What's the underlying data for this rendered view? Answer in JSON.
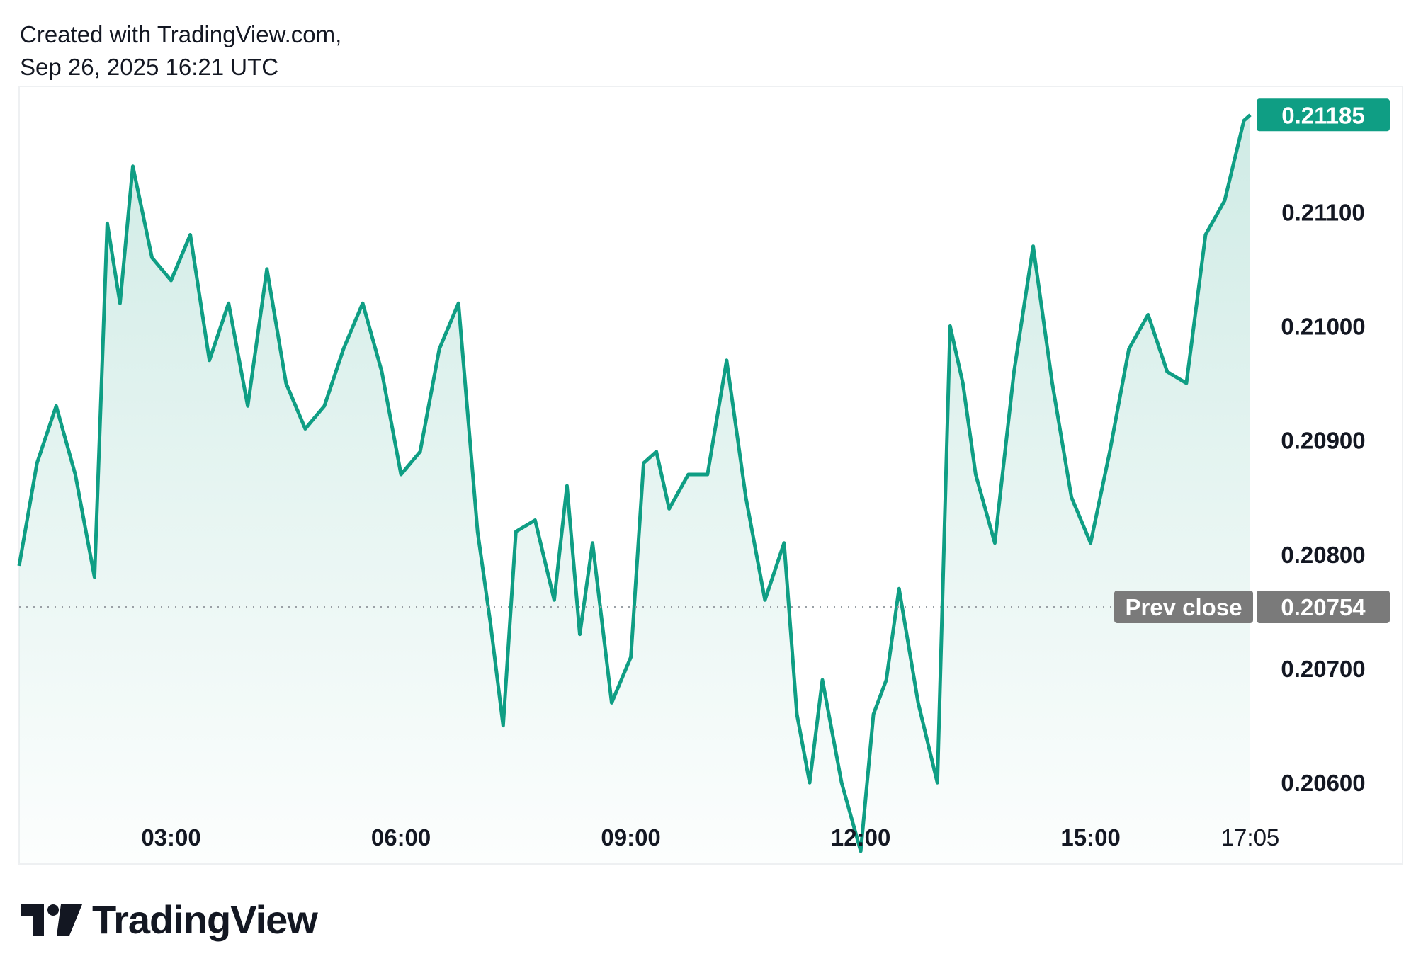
{
  "header": {
    "created_with": "Created with TradingView.com,",
    "timestamp": "Sep 26, 2025 16:21 UTC"
  },
  "brand": {
    "name": "TradingView"
  },
  "colors": {
    "line": "#0f9e84",
    "fill_top": "#cdeae4",
    "badge_gray": "#7a7a7a",
    "text": "#131722"
  },
  "chart_data": {
    "type": "area",
    "ylim": [
      0.2053,
      0.2121
    ],
    "grid": false,
    "y_ticks": [
      "0.21100",
      "0.21000",
      "0.20900",
      "0.20800",
      "0.20700",
      "0.20600"
    ],
    "x_ticks": [
      "03:00",
      "06:00",
      "09:00",
      "12:00",
      "15:00",
      "17:05"
    ],
    "last_price_label": "0.21185",
    "prev_close": {
      "label": "Prev close",
      "value_label": "0.20754",
      "value": 0.20754
    },
    "series": [
      {
        "x": [
          "01:01",
          "01:15",
          "01:30",
          "01:45",
          "02:00",
          "02:10",
          "02:20",
          "02:30",
          "02:45",
          "03:00",
          "03:15",
          "03:30",
          "03:45",
          "04:00",
          "04:15",
          "04:30",
          "04:45",
          "05:00",
          "05:15",
          "05:30",
          "05:45",
          "06:00",
          "06:15",
          "06:30",
          "06:45",
          "07:00",
          "07:10",
          "07:20",
          "07:30",
          "07:45",
          "08:00",
          "08:10",
          "08:20",
          "08:30",
          "08:45",
          "09:00",
          "09:10",
          "09:20",
          "09:30",
          "09:45",
          "10:00",
          "10:15",
          "10:30",
          "10:45",
          "11:00",
          "11:10",
          "11:20",
          "11:30",
          "11:45",
          "12:00",
          "12:10",
          "12:20",
          "12:30",
          "12:45",
          "13:00",
          "13:10",
          "13:20",
          "13:30",
          "13:45",
          "14:00",
          "14:15",
          "14:30",
          "14:45",
          "15:00",
          "15:15",
          "15:30",
          "15:45",
          "16:00",
          "16:15",
          "16:30",
          "16:45",
          "17:00",
          "17:05"
        ],
        "values": [
          0.2079,
          0.2088,
          0.2093,
          0.2087,
          0.2078,
          0.2109,
          0.2102,
          0.2114,
          0.2106,
          0.2104,
          0.2108,
          0.2097,
          0.2102,
          0.2093,
          0.2105,
          0.2095,
          0.2091,
          0.2093,
          0.2098,
          0.2102,
          0.2096,
          0.2087,
          0.2089,
          0.2098,
          0.2102,
          0.2082,
          0.2074,
          0.2065,
          0.2082,
          0.2083,
          0.2076,
          0.2086,
          0.2073,
          0.2081,
          0.2067,
          0.2071,
          0.2088,
          0.2089,
          0.2084,
          0.2087,
          0.2087,
          0.2097,
          0.2085,
          0.2076,
          0.2081,
          0.2066,
          0.206,
          0.2069,
          0.206,
          0.2054,
          0.2066,
          0.2069,
          0.2077,
          0.2067,
          0.206,
          0.21,
          0.2095,
          0.2087,
          0.2081,
          0.2096,
          0.2107,
          0.2095,
          0.2085,
          0.2081,
          0.2089,
          0.2098,
          0.2101,
          0.2096,
          0.2095,
          0.2108,
          0.2111,
          0.2118,
          0.21185
        ]
      }
    ]
  }
}
